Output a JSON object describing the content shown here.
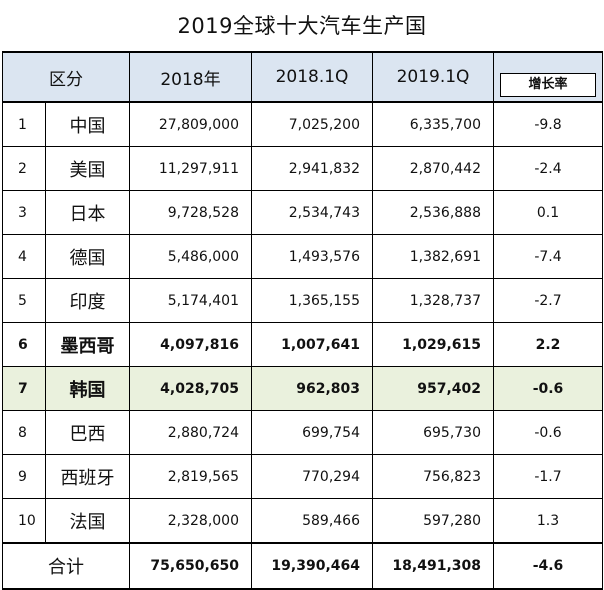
{
  "title": "2019全球十大汽车生产国",
  "headers": {
    "category": "区分",
    "y2018": "2018年",
    "q2018": "2018.1Q",
    "q2019": "2019.1Q",
    "growth": "增长率"
  },
  "rows": [
    {
      "rank": "1",
      "country": "中国",
      "y2018": "27,809,000",
      "q2018": "7,025,200",
      "q2019": "6,335,700",
      "growth": "-9.8"
    },
    {
      "rank": "2",
      "country": "美国",
      "y2018": "11,297,911",
      "q2018": "2,941,832",
      "q2019": "2,870,442",
      "growth": "-2.4"
    },
    {
      "rank": "3",
      "country": "日本",
      "y2018": "9,728,528",
      "q2018": "2,534,743",
      "q2019": "2,536,888",
      "growth": "0.1"
    },
    {
      "rank": "4",
      "country": "德国",
      "y2018": "5,486,000",
      "q2018": "1,493,576",
      "q2019": "1,382,691",
      "growth": "-7.4"
    },
    {
      "rank": "5",
      "country": "印度",
      "y2018": "5,174,401",
      "q2018": "1,365,155",
      "q2019": "1,328,737",
      "growth": "-2.7"
    },
    {
      "rank": "6",
      "country": "墨西哥",
      "y2018": "4,097,816",
      "q2018": "1,007,641",
      "q2019": "1,029,615",
      "growth": "2.2"
    },
    {
      "rank": "7",
      "country": "韩国",
      "y2018": "4,028,705",
      "q2018": "962,803",
      "q2019": "957,402",
      "growth": "-0.6"
    },
    {
      "rank": "8",
      "country": "巴西",
      "y2018": "2,880,724",
      "q2018": "699,754",
      "q2019": "695,730",
      "growth": "-0.6"
    },
    {
      "rank": "9",
      "country": "西班牙",
      "y2018": "2,819,565",
      "q2018": "770,294",
      "q2019": "756,823",
      "growth": "-1.7"
    },
    {
      "rank": "10",
      "country": "法国",
      "y2018": "2,328,000",
      "q2018": "589,466",
      "q2019": "597,280",
      "growth": "1.3"
    }
  ],
  "total": {
    "label": "合计",
    "y2018": "75,650,650",
    "q2018": "19,390,464",
    "q2019": "18,491,308",
    "growth": "-4.6"
  },
  "colors": {
    "header_bg": "#dbe5f1",
    "highlight_bg": "#eaf1dd"
  }
}
